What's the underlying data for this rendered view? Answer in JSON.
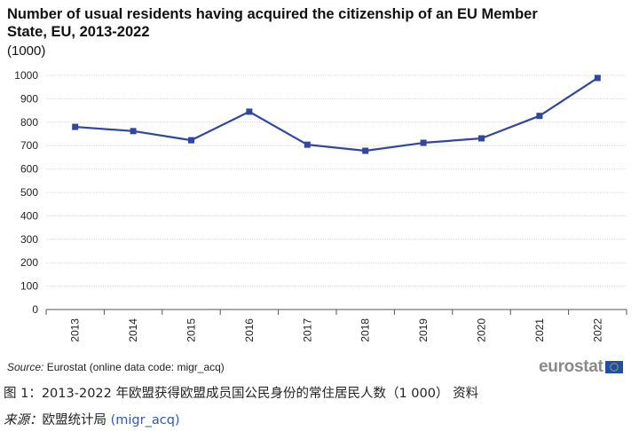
{
  "chart_data": {
    "type": "line",
    "title": "Number of usual residents having acquired the citizenship of an EU Member State, EU, 2013-2022",
    "unit_label": "(1000)",
    "categories": [
      "2013",
      "2014",
      "2015",
      "2016",
      "2017",
      "2018",
      "2019",
      "2020",
      "2021",
      "2022"
    ],
    "series": [
      {
        "values": [
          780,
          762,
          723,
          845,
          704,
          678,
          712,
          731,
          827,
          989
        ]
      }
    ],
    "ylim": [
      0,
      1000
    ],
    "yticks": [
      0,
      100,
      200,
      300,
      400,
      500,
      600,
      700,
      800,
      900,
      1000
    ],
    "grid": true,
    "legend": "none",
    "colors": {
      "line": "#2f47a0",
      "grid": "#d9d9d9",
      "axis": "#555555"
    }
  },
  "source": {
    "label": "Source:",
    "text": " Eurostat (online data code: migr_acq)"
  },
  "logo": {
    "text": "eurostat",
    "flag_color": "#1f4fa8",
    "star_color": "#ffd200"
  },
  "caption": "图 1：2013-2022 年欧盟获得欧盟成员国公民身份的常住居民人数（1 000） 资料",
  "footer": {
    "label": "来源：",
    "text": "欧盟统计局 ",
    "link": "(migr_acq)"
  }
}
